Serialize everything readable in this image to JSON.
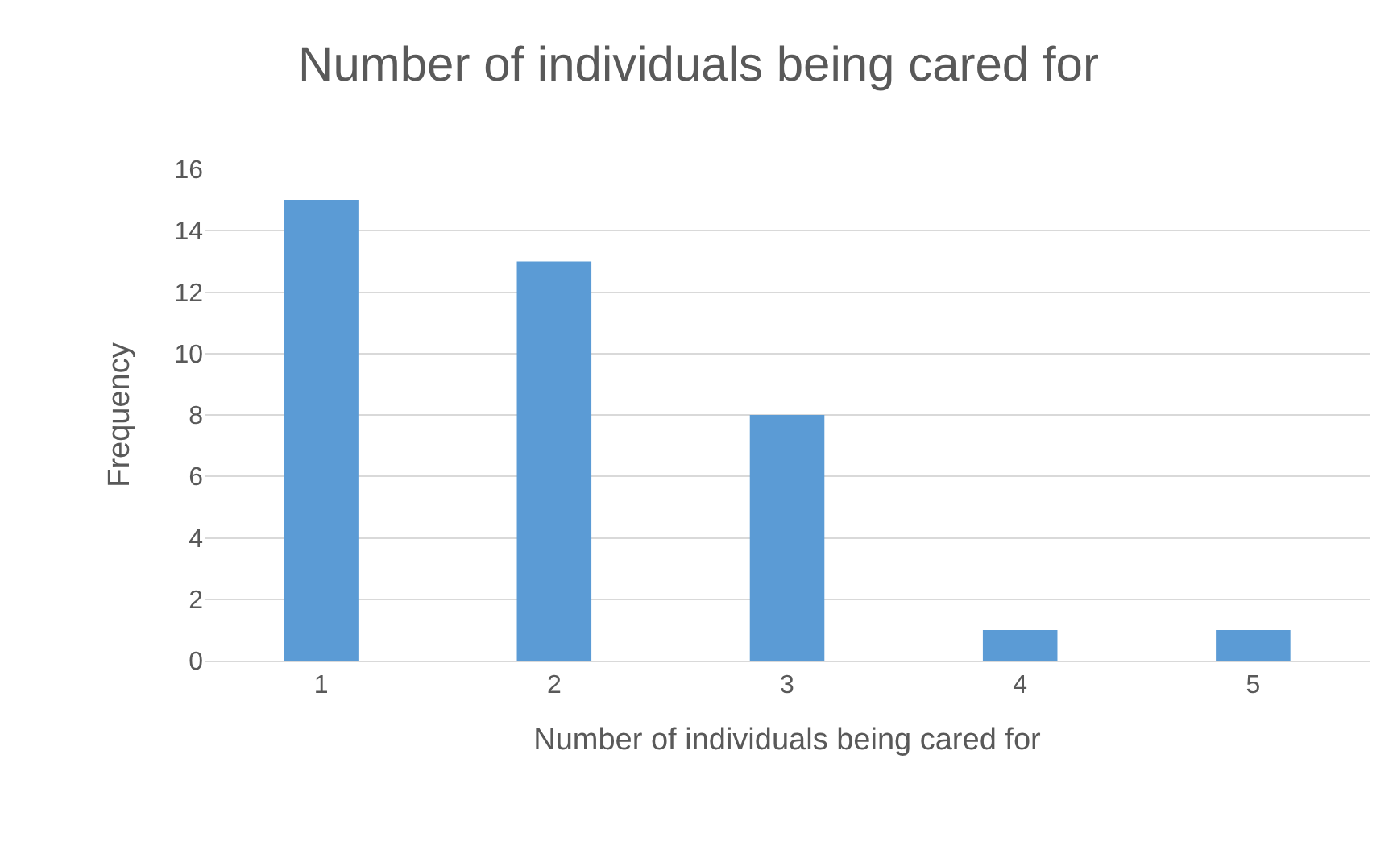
{
  "chart_data": {
    "type": "bar",
    "title": "Number of individuals being cared for",
    "xlabel": "Number of individuals being cared for",
    "ylabel": "Frequency",
    "categories": [
      "1",
      "2",
      "3",
      "4",
      "5"
    ],
    "values": [
      15,
      13,
      8,
      1,
      1
    ],
    "color": "#5b9bd5",
    "ylim": [
      0,
      16
    ],
    "yticks": [
      0,
      2,
      4,
      6,
      8,
      10,
      12,
      14,
      16
    ],
    "grid": "y"
  }
}
